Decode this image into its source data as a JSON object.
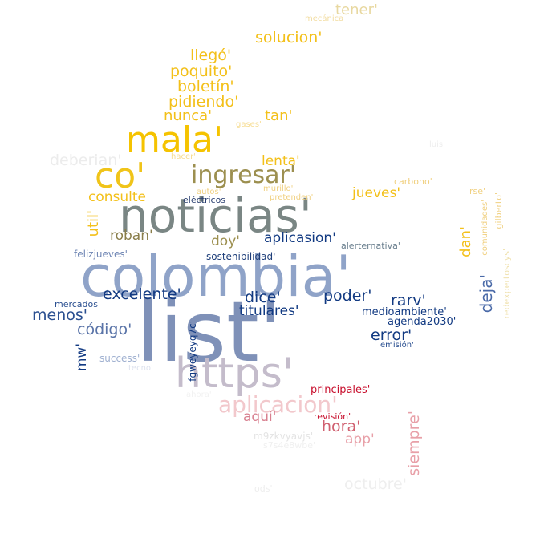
{
  "word_cloud": {
    "words": [
      {
        "text": "list'",
        "color": "#7f91b8"
      },
      {
        "text": "colombia'",
        "color": "#8fa3c8"
      },
      {
        "text": "noticias'",
        "color": "#7a8684"
      },
      {
        "text": "https'",
        "color": "#c4bccb"
      },
      {
        "text": "mala'",
        "color": "#f5c300"
      },
      {
        "text": "co'",
        "color": "#f0c419"
      },
      {
        "text": "ingresar'",
        "color": "#9c8f4f"
      },
      {
        "text": "aplicacion'",
        "color": "#f2c8cc"
      },
      {
        "text": "tener'",
        "color": "#e8d8a0"
      },
      {
        "text": "mecánica",
        "color": "#f2dca0"
      },
      {
        "text": "solucion'",
        "color": "#f3c01a"
      },
      {
        "text": "llegó'",
        "color": "#f3c01a"
      },
      {
        "text": "poquito'",
        "color": "#f3c01a"
      },
      {
        "text": "boletín'",
        "color": "#f3c01a"
      },
      {
        "text": "pidiendo'",
        "color": "#f3c01a"
      },
      {
        "text": "nunca'",
        "color": "#f3c01a"
      },
      {
        "text": "tan'",
        "color": "#f3c01a"
      },
      {
        "text": "gases'",
        "color": "#f6dc90"
      },
      {
        "text": "hacer'",
        "color": "#f6dc90"
      },
      {
        "text": "deberian'",
        "color": "#ececec"
      },
      {
        "text": "luis'",
        "color": "#eeeeee"
      },
      {
        "text": "lenta'",
        "color": "#f3c01a"
      },
      {
        "text": "carbono'",
        "color": "#f0d080"
      },
      {
        "text": "autos'",
        "color": "#f0d080"
      },
      {
        "text": "murillo'",
        "color": "#f0d080"
      },
      {
        "text": "pretenden'",
        "color": "#f0d080"
      },
      {
        "text": "consulte",
        "color": "#f3c01a"
      },
      {
        "text": "jueves'",
        "color": "#f3c01a"
      },
      {
        "text": "rse'",
        "color": "#f0d080"
      },
      {
        "text": "util'",
        "color": "#f3c01a"
      },
      {
        "text": "roban'",
        "color": "#8a7e4a"
      },
      {
        "text": "aplicasion'",
        "color": "#123a82"
      },
      {
        "text": "doy'",
        "color": "#9c8f4f"
      },
      {
        "text": "dan'",
        "color": "#f3c01a"
      },
      {
        "text": "felizjueves'",
        "color": "#6f86b4"
      },
      {
        "text": "sostenibilidad'",
        "color": "#1f3f7a"
      },
      {
        "text": "alerternativa'",
        "color": "#6a7f8e"
      },
      {
        "text": "eléctricos",
        "color": "#2a3f70"
      },
      {
        "text": "comunidades'",
        "color": "#f0d080"
      },
      {
        "text": "gilberto'",
        "color": "#f0d080"
      },
      {
        "text": "excelente'",
        "color": "#123a82"
      },
      {
        "text": "dice'",
        "color": "#123a82"
      },
      {
        "text": "poder'",
        "color": "#123a82"
      },
      {
        "text": "rarv'",
        "color": "#123a82"
      },
      {
        "text": "deja'",
        "color": "#4a6aa8"
      },
      {
        "text": "redexpertoscys'",
        "color": "#f0e2b0"
      },
      {
        "text": "mercados'",
        "color": "#2a4f90"
      },
      {
        "text": "titulares'",
        "color": "#123a82"
      },
      {
        "text": "medioambiente'",
        "color": "#123a82"
      },
      {
        "text": "menos'",
        "color": "#2a4f90"
      },
      {
        "text": "agenda2030'",
        "color": "#123a82"
      },
      {
        "text": "código'",
        "color": "#5a74a8"
      },
      {
        "text": "error'",
        "color": "#123a82"
      },
      {
        "text": "emisión'",
        "color": "#2a4f90"
      },
      {
        "text": "mw'",
        "color": "#123a82"
      },
      {
        "text": "fgweyeyq7c'",
        "color": "#123a82"
      },
      {
        "text": "success'",
        "color": "#9fb0d0"
      },
      {
        "text": "tecno'",
        "color": "#dde2ee"
      },
      {
        "text": "principales'",
        "color": "#c8102e"
      },
      {
        "text": "ahora'",
        "color": "#f2f2f2"
      },
      {
        "text": "aquí'",
        "color": "#d88090"
      },
      {
        "text": "revisión'",
        "color": "#c8102e"
      },
      {
        "text": "hora'",
        "color": "#d06070"
      },
      {
        "text": "app'",
        "color": "#e8a0a8"
      },
      {
        "text": "siempre'",
        "color": "#e8a0a8"
      },
      {
        "text": "m9zkvyavjs'",
        "color": "#e4e4e4"
      },
      {
        "text": "s7s4e8wbe'",
        "color": "#f0f0f0"
      },
      {
        "text": "octubre'",
        "color": "#eeeeee"
      },
      {
        "text": "ods'",
        "color": "#eeeeee"
      }
    ]
  }
}
